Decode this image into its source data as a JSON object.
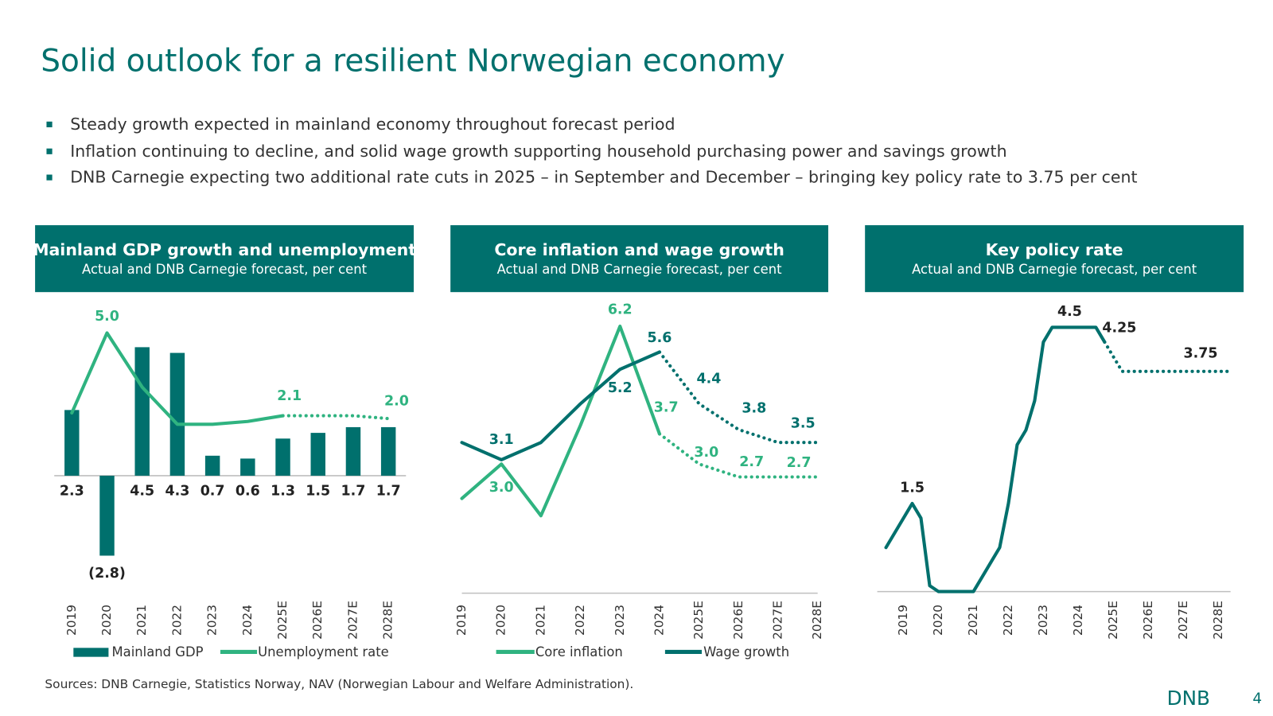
{
  "title": "Solid outlook for a resilient Norwegian economy",
  "bullets": [
    "Steady growth expected in mainland economy throughout forecast period",
    "Inflation continuing to decline, and solid wage growth supporting household purchasing power and savings growth",
    "DNB Carnegie expecting two additional rate cuts in 2025 – in September and December – bringing key policy rate to 3.75 per cent"
  ],
  "sources": "Sources: DNB Carnegie, Statistics Norway, NAV (Norwegian Labour and Welfare Administration).",
  "logo": "DNB",
  "page_number": 4,
  "chart_data": [
    {
      "type": "bar",
      "title": "Mainland GDP growth and unemployment",
      "subtitle": "Actual and DNB Carnegie forecast, per cent",
      "categories": [
        "2019",
        "2020",
        "2021",
        "2022",
        "2023",
        "2024",
        "2025E",
        "2026E",
        "2027E",
        "2028E"
      ],
      "series": [
        {
          "name": "Mainland GDP",
          "type": "bar",
          "color": "#00706d",
          "values": [
            2.3,
            -2.8,
            4.5,
            4.3,
            0.7,
            0.6,
            1.3,
            1.5,
            1.7,
            1.7
          ],
          "value_labels": [
            "2.3",
            "(2.8)",
            "4.5",
            "4.3",
            "0.7",
            "0.6",
            "1.3",
            "1.5",
            "1.7",
            "1.7"
          ]
        },
        {
          "name": "Unemployment rate",
          "type": "line",
          "color": "#2fb380",
          "values": [
            2.2,
            5.0,
            3.1,
            1.8,
            1.8,
            1.9,
            2.1,
            2.1,
            2.1,
            2.0
          ],
          "value_labels": [
            null,
            "5.0",
            null,
            null,
            null,
            null,
            "2.1",
            null,
            null,
            "2.0"
          ],
          "dotted_from": 6
        }
      ],
      "ylim": [
        -3.5,
        5.5
      ]
    },
    {
      "type": "line",
      "title": "Core inflation and wage growth",
      "subtitle": "Actual and DNB Carnegie forecast, per cent",
      "categories": [
        "2019",
        "2020",
        "2021",
        "2022",
        "2023",
        "2024",
        "2025E",
        "2026E",
        "2027E",
        "2028E"
      ],
      "series": [
        {
          "name": "Core inflation",
          "color": "#2fb380",
          "values": [
            2.2,
            3.0,
            1.8,
            3.9,
            6.2,
            3.7,
            3.0,
            2.7,
            2.7,
            2.7
          ],
          "value_labels": [
            null,
            "3.0",
            null,
            null,
            "6.2",
            "3.7",
            "3.0",
            "2.7",
            null,
            "2.7"
          ],
          "dotted_from": 5
        },
        {
          "name": "Wage growth",
          "color": "#00706d",
          "values": [
            3.5,
            3.1,
            3.5,
            4.4,
            5.2,
            5.6,
            4.4,
            3.8,
            3.5,
            3.5
          ],
          "value_labels": [
            null,
            "3.1",
            null,
            null,
            "5.2",
            "5.6",
            "4.4",
            "3.8",
            null,
            "3.5"
          ],
          "dotted_from": 5
        }
      ],
      "ylim": [
        0,
        6.5
      ]
    },
    {
      "type": "line",
      "title": "Key policy rate",
      "subtitle": "Actual and DNB Carnegie forecast, per cent",
      "x": [
        2018.5,
        2019.25,
        2019.5,
        2019.75,
        2020.0,
        2021.0,
        2021.25,
        2021.5,
        2021.75,
        2022.0,
        2022.25,
        2022.5,
        2022.75,
        2023.0,
        2023.25,
        2023.75,
        2024.5,
        2024.75,
        2025.25,
        2027.75,
        2028.25
      ],
      "series": [
        {
          "name": "Key policy rate",
          "color": "#00706d",
          "values": [
            0.75,
            1.5,
            1.25,
            0.1,
            0,
            0,
            0.25,
            0.5,
            0.75,
            1.5,
            2.5,
            2.75,
            3.25,
            4.25,
            4.5,
            4.5,
            4.5,
            4.25,
            3.75,
            3.75,
            3.75
          ],
          "value_labels": [
            null,
            "1.5",
            null,
            null,
            null,
            null,
            null,
            null,
            null,
            null,
            null,
            null,
            null,
            null,
            null,
            "4.5",
            null,
            "4.25",
            null,
            "3.75",
            null
          ],
          "dotted_from": 17
        }
      ],
      "xlim": [
        2018.25,
        2028.35
      ],
      "xticks": [
        2019,
        2020,
        2021,
        2022,
        2023,
        2024,
        {
          "value": 2025,
          "label": "2025E"
        },
        {
          "value": 2026,
          "label": "2026E"
        },
        {
          "value": 2027,
          "label": "2027E"
        },
        {
          "value": 2028,
          "label": "2028E"
        }
      ],
      "ylim": [
        0,
        4.6
      ]
    }
  ]
}
